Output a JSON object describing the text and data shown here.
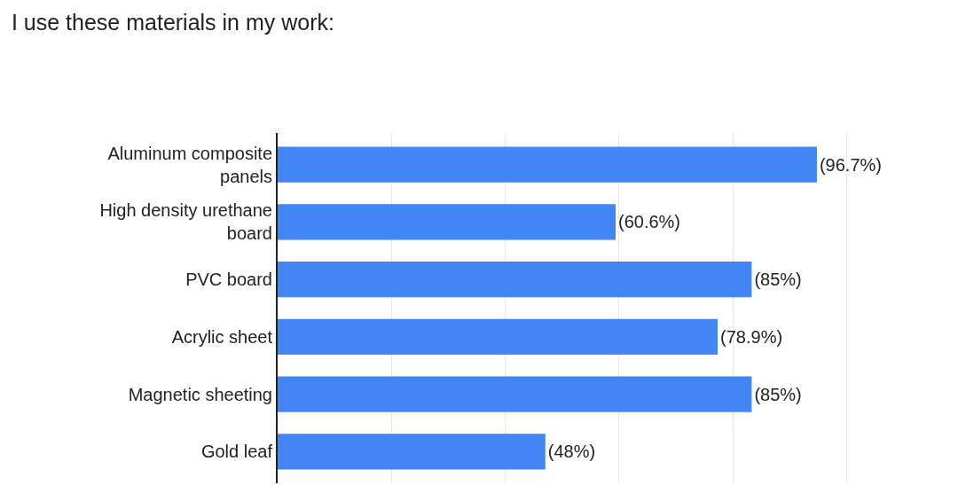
{
  "chart_data": {
    "type": "bar",
    "orientation": "horizontal",
    "title": "I use these materials in my work:",
    "categories": [
      "Aluminum composite panels",
      "High density urethane board",
      "PVC board",
      "Acrylic sheet",
      "Magnetic sheeting",
      "Gold leaf"
    ],
    "values": [
      96.7,
      60.6,
      85,
      78.9,
      85,
      48
    ],
    "value_labels": [
      "(96.7%)",
      "(60.6%)",
      "(85%)",
      "(78.9%)",
      "(85%)",
      "(48%)"
    ],
    "color": "#4285f4",
    "xlim": [
      0,
      122
    ],
    "xticks": [
      {
        "value": 20.4,
        "label": null
      },
      {
        "value": 40.8,
        "label": null
      },
      {
        "value": 61.2,
        "label": null
      },
      {
        "value": 81.6,
        "label": null
      },
      {
        "value": 102,
        "label": null
      }
    ],
    "tick_labels": "y",
    "grid": "x"
  }
}
